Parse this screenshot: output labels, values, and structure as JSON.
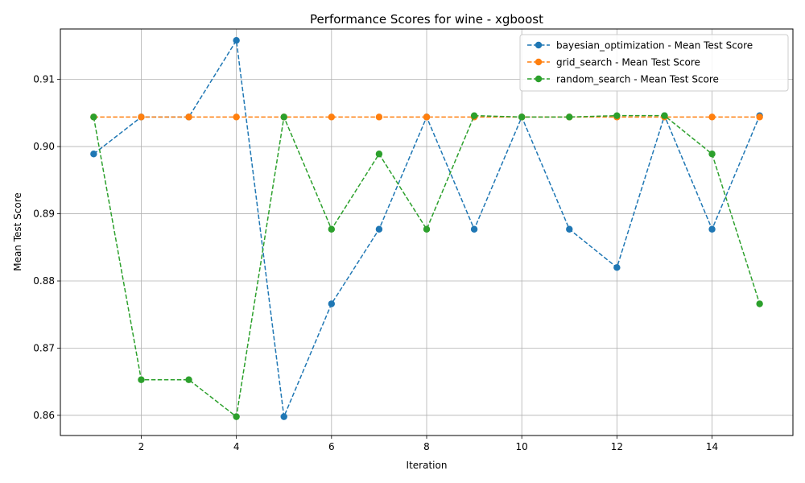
{
  "chart_data": {
    "type": "line",
    "title": "Performance Scores for wine - xgboost",
    "xlabel": "Iteration",
    "ylabel": "Mean Test Score",
    "xlim": [
      0.3,
      15.7
    ],
    "ylim": [
      0.857,
      0.9175
    ],
    "xticks": [
      2,
      4,
      6,
      8,
      10,
      12,
      14
    ],
    "yticks": [
      0.86,
      0.87,
      0.88,
      0.89,
      0.9,
      0.91
    ],
    "ytick_labels": [
      "0.86",
      "0.87",
      "0.88",
      "0.89",
      "0.90",
      "0.91"
    ],
    "grid": true,
    "legend_position": "upper right",
    "x": [
      1,
      2,
      3,
      4,
      5,
      6,
      7,
      8,
      9,
      10,
      11,
      12,
      13,
      14,
      15
    ],
    "series": [
      {
        "name": "bayesian_optimization - Mean Test Score",
        "color": "#1f77b4",
        "values": [
          0.8989,
          0.9044,
          0.9044,
          0.9158,
          0.8598,
          0.8766,
          0.8877,
          0.9044,
          0.8877,
          0.9044,
          0.8877,
          0.882,
          0.9046,
          0.8877,
          0.9046
        ]
      },
      {
        "name": "grid_search - Mean Test Score",
        "color": "#ff7f0e",
        "values": [
          0.9044,
          0.9044,
          0.9044,
          0.9044,
          0.9044,
          0.9044,
          0.9044,
          0.9044,
          0.9044,
          0.9044,
          0.9044,
          0.9044,
          0.9044,
          0.9044,
          0.9044
        ]
      },
      {
        "name": "random_search - Mean Test Score",
        "color": "#2ca02c",
        "values": [
          0.9044,
          0.8653,
          0.8653,
          0.8598,
          0.9044,
          0.8877,
          0.8989,
          0.8877,
          0.9046,
          0.9044,
          0.9044,
          0.9046,
          0.9046,
          0.8989,
          0.8766
        ]
      }
    ]
  }
}
